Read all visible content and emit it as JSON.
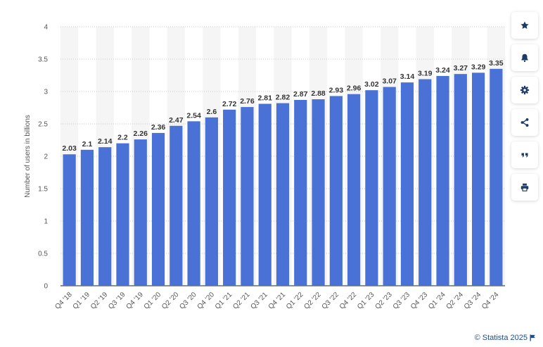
{
  "chart_data": {
    "type": "bar",
    "categories": [
      "Q4 '18",
      "Q1 '19",
      "Q2 '19",
      "Q3 '19",
      "Q4 '19",
      "Q1 '20",
      "Q2 '20",
      "Q3 '20",
      "Q4 '20",
      "Q1 '21",
      "Q2 '21",
      "Q3 '21",
      "Q4 '21",
      "Q1 '22",
      "Q2 '22",
      "Q3 '22",
      "Q4 '22",
      "Q1 '23",
      "Q2 '23",
      "Q3 '23",
      "Q4 '23",
      "Q1 '24",
      "Q2 '24",
      "Q3 '24",
      "Q4 '24"
    ],
    "values": [
      2.03,
      2.1,
      2.14,
      2.2,
      2.26,
      2.36,
      2.47,
      2.54,
      2.6,
      2.72,
      2.76,
      2.81,
      2.82,
      2.87,
      2.88,
      2.93,
      2.96,
      3.02,
      3.07,
      3.14,
      3.19,
      3.24,
      3.27,
      3.29,
      3.35
    ],
    "value_labels": [
      "2.03",
      "2.1",
      "2.14",
      "2.2",
      "2.26",
      "2.36",
      "2.47",
      "2.54",
      "2.6",
      "2.72",
      "2.76",
      "2.81",
      "2.82",
      "2.87",
      "2.88",
      "2.93",
      "2.96",
      "3.02",
      "3.07",
      "3.14",
      "3.19",
      "3.24",
      "3.27",
      "3.29",
      "3.35"
    ],
    "ylabel": "Number of users in billions",
    "ylim": [
      0,
      4
    ],
    "yticks": [
      "0",
      "0.5",
      "1",
      "1.5",
      "2",
      "2.5",
      "3",
      "3.5",
      "4"
    ],
    "bar_color": "#4a72d6",
    "grid": true,
    "alternating_bands": true
  },
  "toolbar": {
    "buttons": [
      {
        "name": "favorite-button",
        "icon": "star-icon"
      },
      {
        "name": "notification-button",
        "icon": "bell-icon"
      },
      {
        "name": "settings-button",
        "icon": "gear-icon"
      },
      {
        "name": "share-button",
        "icon": "share-icon"
      },
      {
        "name": "cite-button",
        "icon": "quote-icon"
      },
      {
        "name": "print-button",
        "icon": "printer-icon"
      }
    ],
    "icon_color": "#1e3a66"
  },
  "credit": {
    "text": "© Statista 2025",
    "icon": "flag-icon",
    "color": "#1e4d8c"
  }
}
